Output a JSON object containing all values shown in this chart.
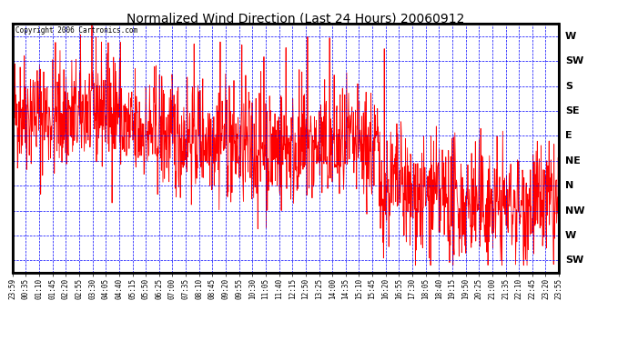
{
  "title": "Normalized Wind Direction (Last 24 Hours) 20060912",
  "copyright_text": "Copyright 2006 Cartronics.com",
  "background_color": "#ffffff",
  "plot_bg_color": "#ffffff",
  "line_color": "#ff0000",
  "grid_color": "#0000ff",
  "y_labels": [
    "W",
    "SW",
    "S",
    "SE",
    "E",
    "NE",
    "N",
    "NW",
    "W",
    "SW"
  ],
  "y_values": [
    8,
    7,
    6,
    5,
    4,
    3,
    2,
    1,
    0,
    -1
  ],
  "ylim": [
    -1.5,
    8.5
  ],
  "x_tick_labels": [
    "23:59",
    "00:35",
    "01:10",
    "01:45",
    "02:20",
    "02:55",
    "03:30",
    "04:05",
    "04:40",
    "05:15",
    "05:50",
    "06:25",
    "07:00",
    "07:35",
    "08:10",
    "08:45",
    "09:20",
    "09:55",
    "10:30",
    "11:05",
    "11:40",
    "12:15",
    "12:50",
    "13:25",
    "14:00",
    "14:35",
    "15:10",
    "15:45",
    "16:20",
    "16:55",
    "17:30",
    "18:05",
    "18:40",
    "19:15",
    "19:50",
    "20:25",
    "21:00",
    "21:35",
    "22:10",
    "22:45",
    "23:20",
    "23:55"
  ],
  "num_points": 1440
}
